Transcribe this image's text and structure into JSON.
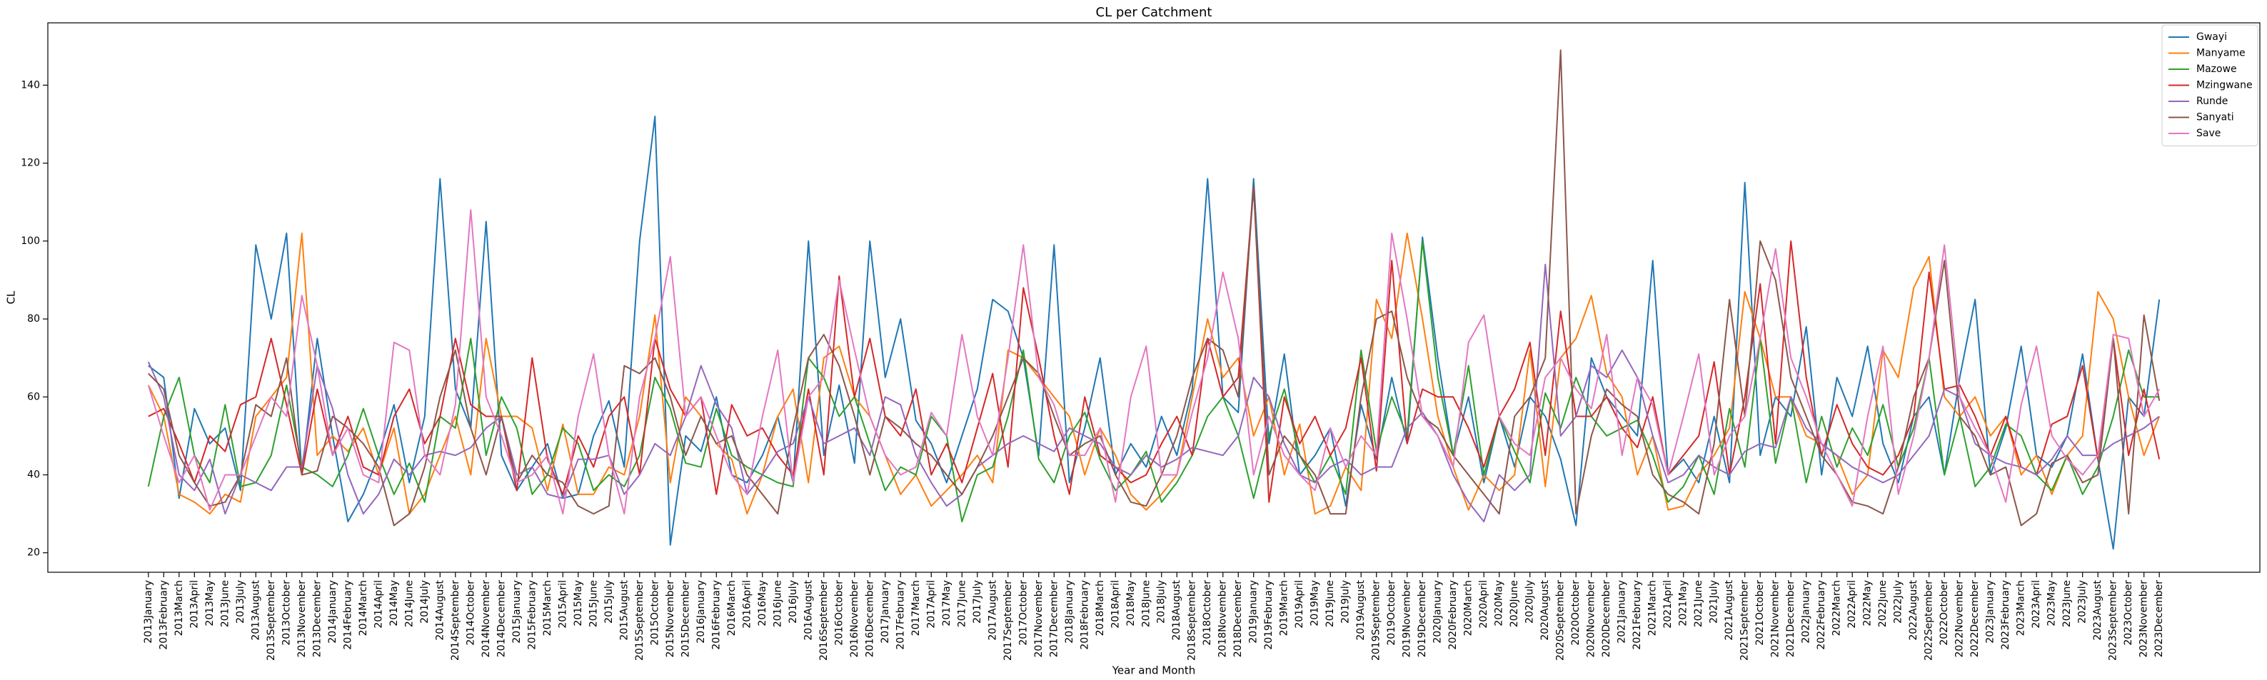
{
  "chart_data": {
    "type": "line",
    "title": "CL per Catchment",
    "x_label": "Year and Month",
    "y_label": "CL",
    "categories": [
      "2013January",
      "2013February",
      "2013March",
      "2013April",
      "2013May",
      "2013June",
      "2013July",
      "2013August",
      "2013September",
      "2013October",
      "2013November",
      "2013December",
      "2014January",
      "2014February",
      "2014March",
      "2014April",
      "2014May",
      "2014June",
      "2014July",
      "2014August",
      "2014September",
      "2014October",
      "2014November",
      "2014December",
      "2015January",
      "2015February",
      "2015March",
      "2015April",
      "2015May",
      "2015June",
      "2015July",
      "2015August",
      "2015September",
      "2015October",
      "2015November",
      "2015December",
      "2016January",
      "2016February",
      "2016March",
      "2016April",
      "2016May",
      "2016June",
      "2016July",
      "2016August",
      "2016September",
      "2016October",
      "2016November",
      "2016December",
      "2017January",
      "2017February",
      "2017March",
      "2017April",
      "2017May",
      "2017June",
      "2017July",
      "2017August",
      "2017September",
      "2017October",
      "2017November",
      "2017December",
      "2018January",
      "2018February",
      "2018March",
      "2018April",
      "2018May",
      "2018June",
      "2018July",
      "2018August",
      "2018September",
      "2018October",
      "2018November",
      "2018December",
      "2019January",
      "2019February",
      "2019March",
      "2019April",
      "2019May",
      "2019June",
      "2019July",
      "2019August",
      "2019September",
      "2019October",
      "2019November",
      "2019December",
      "2020January",
      "2020February",
      "2020March",
      "2020April",
      "2020May",
      "2020June",
      "2020July",
      "2020August",
      "2020September",
      "2020October",
      "2020November",
      "2020December",
      "2021January",
      "2021February",
      "2021March",
      "2021April",
      "2021May",
      "2021June",
      "2021July",
      "2021August",
      "2021September",
      "2021October",
      "2021November",
      "2021December",
      "2022January",
      "2022February",
      "2022March",
      "2022April",
      "2022May",
      "2022June",
      "2022July",
      "2022August",
      "2022September",
      "2022October",
      "2022November",
      "2022December",
      "2023January",
      "2023February",
      "2023March",
      "2023April",
      "2023May",
      "2023June",
      "2023July",
      "2023August",
      "2023September",
      "2023October",
      "2023November",
      "2023December"
    ],
    "series": [
      {
        "name": "Gwayi",
        "color": "#1f77b4",
        "values": [
          68,
          65,
          34,
          57,
          48,
          52,
          36,
          99,
          80,
          102,
          40,
          75,
          50,
          28,
          35,
          45,
          58,
          38,
          55,
          116,
          62,
          52,
          105,
          45,
          36,
          42,
          48,
          34,
          35,
          50,
          59,
          42,
          100,
          132,
          22,
          50,
          46,
          60,
          40,
          38,
          45,
          55,
          38,
          100,
          45,
          63,
          43,
          100,
          65,
          80,
          54,
          48,
          38,
          50,
          62,
          85,
          82,
          70,
          45,
          99,
          38,
          52,
          70,
          40,
          48,
          42,
          55,
          45,
          62,
          116,
          60,
          56,
          116,
          48,
          71,
          40,
          45,
          52,
          32,
          58,
          44,
          65,
          48,
          101,
          70,
          45,
          60,
          38,
          55,
          42,
          60,
          55,
          44,
          27,
          70,
          60,
          55,
          50,
          95,
          40,
          44,
          38,
          55,
          38,
          115,
          45,
          60,
          55,
          78,
          40,
          65,
          55,
          73,
          48,
          38,
          55,
          60,
          40,
          65,
          85,
          40,
          52,
          73,
          45,
          42,
          50,
          71,
          44,
          21,
          60,
          55,
          85
        ]
      },
      {
        "name": "Manyame",
        "color": "#ff7f0e",
        "values": [
          63,
          55,
          35,
          33,
          30,
          35,
          33,
          55,
          60,
          65,
          102,
          45,
          50,
          46,
          52,
          40,
          52,
          30,
          35,
          45,
          55,
          40,
          75,
          55,
          55,
          52,
          36,
          53,
          35,
          35,
          42,
          40,
          55,
          81,
          38,
          60,
          55,
          48,
          44,
          30,
          40,
          55,
          62,
          38,
          70,
          73,
          60,
          55,
          45,
          35,
          40,
          32,
          36,
          40,
          45,
          38,
          72,
          70,
          65,
          60,
          55,
          40,
          52,
          45,
          35,
          31,
          35,
          40,
          60,
          80,
          65,
          70,
          50,
          60,
          40,
          53,
          30,
          32,
          42,
          36,
          85,
          75,
          102,
          80,
          55,
          42,
          31,
          40,
          36,
          40,
          72,
          37,
          70,
          75,
          86,
          66,
          60,
          40,
          50,
          31,
          32,
          40,
          45,
          52,
          87,
          75,
          60,
          60,
          50,
          48,
          45,
          35,
          40,
          72,
          65,
          88,
          96,
          60,
          55,
          60,
          50,
          55,
          40,
          45,
          35,
          45,
          50,
          87,
          80,
          60,
          45,
          55
        ]
      },
      {
        "name": "Mazowe",
        "color": "#2ca02c",
        "values": [
          37,
          55,
          65,
          45,
          38,
          58,
          37,
          38,
          45,
          63,
          42,
          40,
          37,
          45,
          57,
          45,
          35,
          43,
          33,
          55,
          52,
          75,
          45,
          60,
          52,
          35,
          40,
          52,
          48,
          36,
          40,
          37,
          45,
          65,
          57,
          43,
          42,
          57,
          45,
          42,
          40,
          38,
          37,
          70,
          65,
          55,
          60,
          48,
          36,
          42,
          40,
          55,
          50,
          28,
          40,
          42,
          55,
          72,
          44,
          38,
          50,
          56,
          44,
          36,
          40,
          46,
          33,
          38,
          45,
          55,
          60,
          50,
          34,
          50,
          62,
          45,
          38,
          45,
          35,
          72,
          46,
          60,
          50,
          100,
          65,
          45,
          68,
          40,
          55,
          46,
          38,
          61,
          52,
          65,
          55,
          50,
          52,
          54,
          45,
          33,
          37,
          45,
          35,
          57,
          42,
          75,
          43,
          60,
          38,
          55,
          42,
          52,
          45,
          58,
          42,
          52,
          70,
          40,
          55,
          37,
          42,
          53,
          50,
          40,
          36,
          45,
          35,
          42,
          55,
          72,
          60,
          60
        ]
      },
      {
        "name": "Mzingwane",
        "color": "#d62728",
        "values": [
          55,
          57,
          48,
          38,
          50,
          46,
          58,
          60,
          75,
          58,
          40,
          62,
          45,
          55,
          42,
          40,
          55,
          62,
          48,
          55,
          75,
          58,
          55,
          55,
          36,
          70,
          44,
          35,
          50,
          42,
          55,
          60,
          40,
          75,
          62,
          55,
          60,
          35,
          58,
          50,
          52,
          45,
          40,
          62,
          40,
          91,
          60,
          75,
          55,
          50,
          62,
          40,
          48,
          38,
          52,
          66,
          42,
          88,
          70,
          50,
          35,
          60,
          45,
          42,
          38,
          40,
          48,
          55,
          45,
          75,
          60,
          65,
          114,
          33,
          60,
          48,
          55,
          45,
          52,
          70,
          41,
          95,
          48,
          62,
          60,
          60,
          52,
          42,
          55,
          62,
          74,
          45,
          82,
          55,
          55,
          60,
          52,
          47,
          60,
          40,
          45,
          50,
          69,
          40,
          60,
          89,
          48,
          100,
          65,
          45,
          58,
          48,
          42,
          40,
          45,
          55,
          92,
          62,
          63,
          55,
          45,
          55,
          42,
          40,
          53,
          55,
          68,
          44,
          75,
          45,
          62,
          44
        ]
      },
      {
        "name": "Runde",
        "color": "#9467bd",
        "values": [
          69,
          60,
          40,
          36,
          44,
          30,
          40,
          38,
          36,
          42,
          42,
          68,
          57,
          40,
          30,
          35,
          44,
          40,
          45,
          46,
          45,
          47,
          52,
          55,
          40,
          42,
          35,
          34,
          44,
          44,
          45,
          35,
          40,
          48,
          45,
          55,
          68,
          58,
          52,
          35,
          40,
          46,
          48,
          60,
          48,
          50,
          52,
          45,
          60,
          58,
          45,
          38,
          32,
          35,
          42,
          45,
          48,
          50,
          48,
          46,
          52,
          50,
          48,
          42,
          40,
          45,
          42,
          44,
          47,
          46,
          45,
          50,
          65,
          60,
          48,
          40,
          38,
          42,
          44,
          40,
          42,
          42,
          52,
          56,
          50,
          40,
          33,
          28,
          40,
          36,
          40,
          94,
          50,
          55,
          68,
          65,
          72,
          65,
          50,
          38,
          40,
          45,
          42,
          40,
          46,
          48,
          47,
          60,
          52,
          48,
          45,
          42,
          40,
          38,
          40,
          45,
          50,
          62,
          60,
          48,
          45,
          43,
          42,
          40,
          44,
          50,
          45,
          45,
          48,
          50,
          52,
          55
        ]
      },
      {
        "name": "Sanyati",
        "color": "#8c564b",
        "values": [
          66,
          62,
          45,
          38,
          32,
          33,
          40,
          58,
          55,
          70,
          40,
          41,
          55,
          52,
          48,
          42,
          27,
          30,
          42,
          60,
          72,
          52,
          40,
          55,
          38,
          45,
          40,
          38,
          32,
          30,
          32,
          68,
          66,
          70,
          60,
          45,
          55,
          48,
          50,
          40,
          35,
          30,
          52,
          70,
          76,
          68,
          55,
          40,
          55,
          52,
          48,
          45,
          40,
          35,
          42,
          50,
          60,
          70,
          66,
          55,
          45,
          48,
          50,
          40,
          33,
          32,
          40,
          50,
          65,
          75,
          72,
          60,
          114,
          40,
          50,
          45,
          40,
          30,
          30,
          60,
          80,
          82,
          65,
          55,
          52,
          45,
          40,
          35,
          30,
          55,
          60,
          70,
          149,
          30,
          50,
          62,
          58,
          55,
          40,
          35,
          33,
          30,
          48,
          85,
          55,
          100,
          90,
          65,
          55,
          45,
          40,
          33,
          32,
          30,
          42,
          60,
          70,
          95,
          55,
          50,
          40,
          42,
          27,
          30,
          43,
          45,
          38,
          40,
          75,
          30,
          81,
          59
        ]
      },
      {
        "name": "Save",
        "color": "#e377c2",
        "values": [
          63,
          50,
          38,
          45,
          31,
          40,
          40,
          50,
          60,
          55,
          86,
          68,
          45,
          52,
          40,
          38,
          74,
          72,
          45,
          40,
          58,
          108,
          60,
          50,
          38,
          40,
          45,
          30,
          55,
          71,
          45,
          30,
          60,
          75,
          96,
          55,
          60,
          50,
          40,
          35,
          55,
          72,
          38,
          60,
          65,
          90,
          72,
          55,
          45,
          40,
          42,
          56,
          50,
          76,
          55,
          45,
          70,
          99,
          65,
          58,
          45,
          45,
          52,
          33,
          60,
          73,
          40,
          40,
          56,
          70,
          92,
          75,
          40,
          55,
          45,
          40,
          36,
          52,
          42,
          50,
          45,
          102,
          80,
          55,
          50,
          42,
          74,
          81,
          55,
          48,
          45,
          65,
          70,
          62,
          57,
          76,
          45,
          65,
          58,
          40,
          55,
          71,
          40,
          50,
          55,
          75,
          98,
          70,
          60,
          48,
          40,
          32,
          55,
          73,
          35,
          50,
          70,
          99,
          60,
          52,
          45,
          33,
          58,
          73,
          50,
          44,
          40,
          45,
          76,
          75,
          55,
          62
        ]
      }
    ],
    "ylim": [
      15,
      156
    ],
    "yticks": [
      20,
      40,
      60,
      80,
      100,
      120,
      140
    ],
    "legend": "upper right"
  }
}
